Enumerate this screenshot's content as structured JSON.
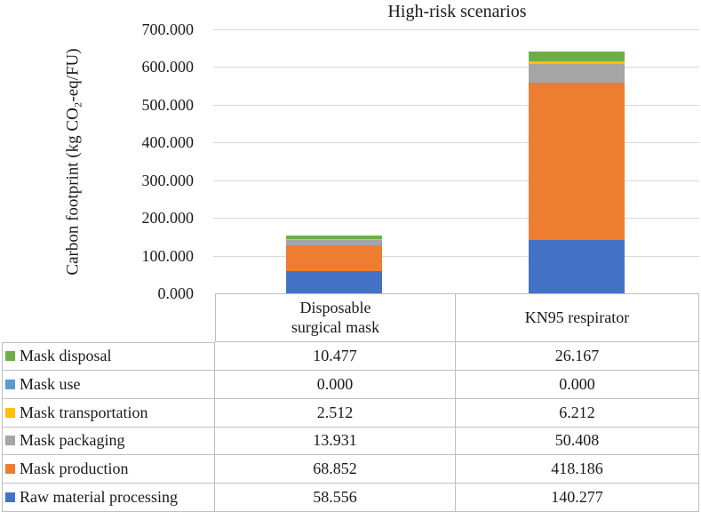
{
  "chart_data": {
    "type": "bar",
    "subtype": "stacked",
    "title": "High-risk scenarios",
    "ylabel": "Carbon footprint (kg CO₂-eq/FU)",
    "xlabel": "",
    "ylim": [
      0,
      700
    ],
    "ytick_step": 100,
    "grid": true,
    "legend_position": "table-left",
    "categories": [
      "Disposable surgical mask",
      "KN95 respirator"
    ],
    "series": [
      {
        "name": "Mask disposal",
        "color": "#70AD47",
        "values": [
          10.477,
          26.167
        ]
      },
      {
        "name": "Mask use",
        "color": "#5B9BD5",
        "values": [
          0.0,
          0.0
        ]
      },
      {
        "name": "Mask transportation",
        "color": "#FFC000",
        "values": [
          2.512,
          6.212
        ]
      },
      {
        "name": "Mask packaging",
        "color": "#A5A5A5",
        "values": [
          13.931,
          50.408
        ]
      },
      {
        "name": "Mask production",
        "color": "#ED7D31",
        "values": [
          68.852,
          418.186
        ]
      },
      {
        "name": "Raw material processing",
        "color": "#4472C4",
        "values": [
          58.556,
          140.277
        ]
      }
    ],
    "stack_order_bottom_to_top": [
      "Raw material processing",
      "Mask production",
      "Mask packaging",
      "Mask transportation",
      "Mask use",
      "Mask disposal"
    ]
  },
  "axis": {
    "ticks": [
      "700.000",
      "600.000",
      "500.000",
      "400.000",
      "300.000",
      "200.000",
      "100.000",
      "0.000"
    ]
  },
  "table": {
    "column_headers": [
      "Disposable\nsurgical mask",
      "KN95 respirator"
    ],
    "rows": [
      {
        "label": "Mask disposal",
        "values": [
          "10.477",
          "26.167"
        ]
      },
      {
        "label": "Mask use",
        "values": [
          "0.000",
          "0.000"
        ]
      },
      {
        "label": "Mask transportation",
        "values": [
          "2.512",
          "6.212"
        ]
      },
      {
        "label": "Mask packaging",
        "values": [
          "13.931",
          "50.408"
        ]
      },
      {
        "label": "Mask production",
        "values": [
          "68.852",
          "418.186"
        ]
      },
      {
        "label": "Raw material processing",
        "values": [
          "58.556",
          "140.277"
        ]
      }
    ]
  }
}
